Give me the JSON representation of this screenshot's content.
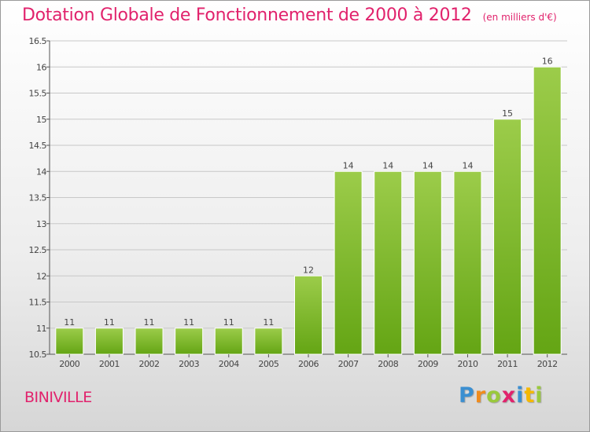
{
  "header": {
    "title": "Dotation Globale de Fonctionnement de 2000 à 2012",
    "subtitle": "(en milliers d'€)"
  },
  "place_name": "BINIVILLE",
  "logo": {
    "text": "Proxiti"
  },
  "colors": {
    "title": "#e1226c",
    "bar_light": "#9ccc4a",
    "bar_dark": "#64a514",
    "grid": "#c8c8c8",
    "axis": "#555555"
  },
  "chart_data": {
    "type": "bar",
    "categories": [
      "2000",
      "2001",
      "2002",
      "2003",
      "2004",
      "2005",
      "2006",
      "2007",
      "2008",
      "2009",
      "2010",
      "2011",
      "2012"
    ],
    "values": [
      11,
      11,
      11,
      11,
      11,
      11,
      12,
      14,
      14,
      14,
      14,
      15,
      16
    ],
    "data_labels": [
      "11",
      "11",
      "11",
      "11",
      "11",
      "11",
      "12",
      "14",
      "14",
      "14",
      "14",
      "15",
      "16"
    ],
    "y_ticks": [
      "10.5",
      "11",
      "11.5",
      "12",
      "12.5",
      "13",
      "13.5",
      "14",
      "14.5",
      "15",
      "15.5",
      "16",
      "16.5"
    ],
    "ylim": [
      10.5,
      16.5
    ],
    "grid": true,
    "legend": "none"
  }
}
